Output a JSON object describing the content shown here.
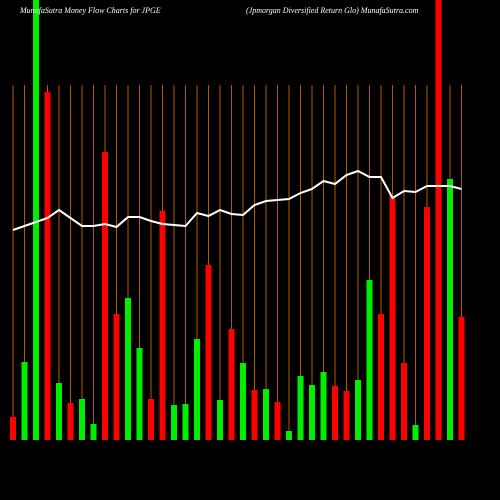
{
  "chart_data": {
    "type": "bar",
    "title": "MunafaSutra  Money  Flow  Charts for JPGE",
    "subtitle": "(Jpmorgan  Diversified  Return  Glo) MunafaSutra.com",
    "ylim": [
      0,
      440
    ],
    "grid": true,
    "grid_color": "#b35900",
    "background": "#000000",
    "series": [
      {
        "colors": [
          "#ff0000",
          "#00ee00",
          "#00ee00",
          "#ff0000",
          "#00ee00",
          "#ff0000",
          "#00ee00",
          "#00ee00",
          "#ff0000",
          "#ff0000",
          "#00ee00",
          "#00ee00",
          "#ff0000",
          "#ff0000",
          "#00ee00",
          "#00ee00",
          "#00ee00",
          "#ff0000",
          "#00ee00",
          "#ff0000",
          "#00ee00",
          "#ff0000",
          "#00ee00",
          "#ff0000",
          "#00ee00",
          "#00ee00",
          "#00ee00",
          "#00ee00",
          "#ff0000",
          "#ff0000",
          "#00ee00",
          "#00ee00",
          "#ff0000",
          "#ff0000",
          "#ff0000",
          "#00ee00",
          "#ff0000",
          "#ff0000",
          "#00ee00",
          "#ff0000"
        ],
        "values": [
          23,
          78,
          445,
          348,
          57,
          37,
          41,
          16,
          288,
          126,
          142,
          92,
          41,
          229,
          35,
          36,
          101,
          175,
          40,
          111,
          77,
          50,
          51,
          38,
          9,
          64,
          55,
          68,
          54,
          49,
          60,
          160,
          126,
          244,
          77,
          15,
          233,
          445,
          261,
          123
        ]
      },
      {
        "type": "line",
        "color": "#ffffff",
        "values": [
          210,
          214,
          218,
          222,
          230,
          222,
          214,
          214,
          216,
          213,
          223,
          223,
          219,
          216,
          215,
          214,
          227,
          224,
          230,
          226,
          225,
          235,
          239,
          240,
          241,
          247,
          251,
          259,
          256,
          265,
          269,
          263,
          263,
          242,
          249,
          248,
          254,
          254,
          254,
          251
        ]
      }
    ]
  }
}
